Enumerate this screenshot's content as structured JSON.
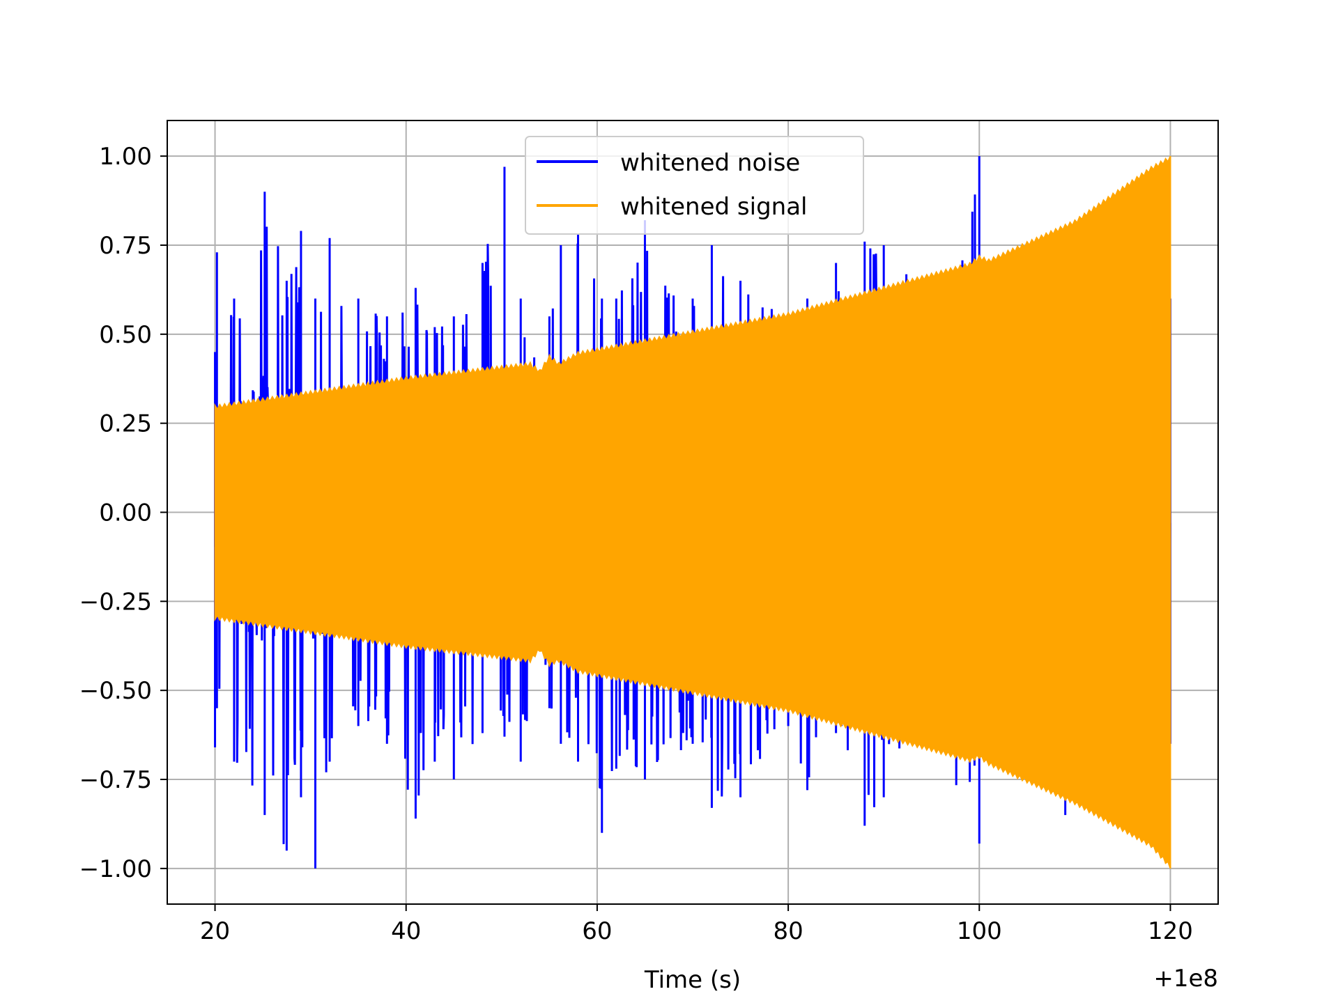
{
  "chart_data": {
    "type": "line",
    "title": "",
    "xlabel": "Time (s)",
    "ylabel": "",
    "x_offset_label": "+1e8",
    "xlim": [
      15,
      125
    ],
    "ylim": [
      -1.1,
      1.1
    ],
    "xticks": [
      20,
      40,
      60,
      80,
      100,
      120
    ],
    "xtick_labels": [
      "20",
      "40",
      "60",
      "80",
      "100",
      "120"
    ],
    "yticks": [
      1.0,
      0.75,
      0.5,
      0.25,
      0.0,
      -0.25,
      -0.5,
      -0.75,
      -1.0
    ],
    "ytick_labels": [
      "1.00",
      "0.75",
      "0.50",
      "0.25",
      "0.00",
      "−0.25",
      "−0.50",
      "−0.75",
      "−1.00"
    ],
    "grid": true,
    "legend_position": "upper-center",
    "series": [
      {
        "name": "whitened noise",
        "color": "#0000ff",
        "description_of_envelope": "dense noise between about -0.65 and 0.75 with sparse spikes",
        "x": [
          20,
          20.2,
          22,
          25.2,
          27.5,
          29,
          30.5,
          32,
          35,
          38,
          41,
          43,
          45,
          48,
          50.3,
          52,
          55,
          56.2,
          58,
          60.5,
          62,
          65,
          70,
          72,
          75,
          80,
          82,
          85,
          88,
          90,
          95,
          100,
          100.1,
          102,
          105,
          109,
          115,
          120
        ],
        "upper": [
          0.45,
          0.73,
          0.6,
          0.9,
          0.65,
          0.79,
          0.6,
          0.77,
          0.6,
          0.55,
          0.63,
          0.52,
          0.55,
          0.7,
          0.97,
          0.6,
          0.55,
          0.75,
          0.78,
          0.6,
          0.6,
          0.82,
          0.6,
          0.75,
          0.65,
          0.55,
          0.6,
          0.7,
          0.76,
          0.75,
          0.6,
          1.0,
          0.6,
          0.6,
          0.62,
          0.65,
          0.6,
          0.6
        ],
        "lower": [
          -0.66,
          -0.55,
          -0.7,
          -0.85,
          -0.95,
          -0.8,
          -1.0,
          -0.7,
          -0.6,
          -0.65,
          -0.86,
          -0.7,
          -0.75,
          -0.62,
          -0.63,
          -0.7,
          -0.55,
          -0.65,
          -0.7,
          -0.9,
          -0.72,
          -0.75,
          -0.65,
          -0.83,
          -0.8,
          -0.6,
          -0.78,
          -0.62,
          -0.88,
          -0.8,
          -0.6,
          -0.93,
          -0.62,
          -0.62,
          -0.65,
          -0.85,
          -0.65,
          -0.65
        ]
      },
      {
        "name": "whitened signal",
        "color": "#ffa500",
        "description_of_envelope": "chirp oscillation with amplitude growing from 0.3 to 1.0",
        "x": [
          20,
          40,
          53,
          54,
          55,
          56,
          58,
          80,
          99,
          100,
          101,
          110,
          118,
          120
        ],
        "upper": [
          0.3,
          0.38,
          0.42,
          0.4,
          0.44,
          0.42,
          0.45,
          0.56,
          0.7,
          0.72,
          0.71,
          0.82,
          0.97,
          1.0
        ],
        "lower": [
          -0.3,
          -0.38,
          -0.42,
          -0.39,
          -0.43,
          -0.42,
          -0.45,
          -0.56,
          -0.7,
          -0.69,
          -0.71,
          -0.82,
          -0.94,
          -1.0
        ]
      }
    ]
  }
}
